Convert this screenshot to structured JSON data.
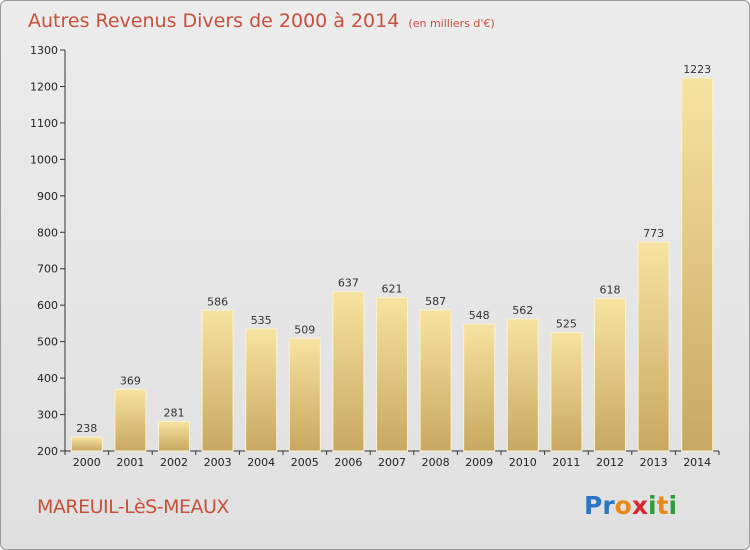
{
  "title": "Autres Revenus Divers de 2000 à 2014",
  "subtitle": "(en milliers d'€)",
  "commune": "MAREUIL-LèS-MEAUX",
  "logo": {
    "letters": [
      {
        "ch": "P",
        "color": "#2b74c6"
      },
      {
        "ch": "r",
        "color": "#2b74c6"
      },
      {
        "ch": "o",
        "color": "#e88a1a"
      },
      {
        "ch": "x",
        "color": "#d8262e"
      },
      {
        "ch": "i",
        "color": "#2e9d3a"
      },
      {
        "ch": "t",
        "color": "#e88a1a"
      },
      {
        "ch": "i",
        "color": "#2e9d3a"
      }
    ]
  },
  "colors": {
    "bar_light": "#f7e3a0",
    "bar_dark": "#c8a860",
    "title": "#c8503c"
  },
  "chart_data": {
    "type": "bar",
    "categories": [
      "2000",
      "2001",
      "2002",
      "2003",
      "2004",
      "2005",
      "2006",
      "2007",
      "2008",
      "2009",
      "2010",
      "2011",
      "2012",
      "2013",
      "2014"
    ],
    "values": [
      238,
      369,
      281,
      586,
      535,
      509,
      637,
      621,
      587,
      548,
      562,
      525,
      618,
      773,
      1223
    ],
    "ylim": [
      200,
      1300
    ],
    "yticks": [
      200,
      300,
      400,
      500,
      600,
      700,
      800,
      900,
      1000,
      1100,
      1200,
      1300
    ],
    "grid": false
  }
}
